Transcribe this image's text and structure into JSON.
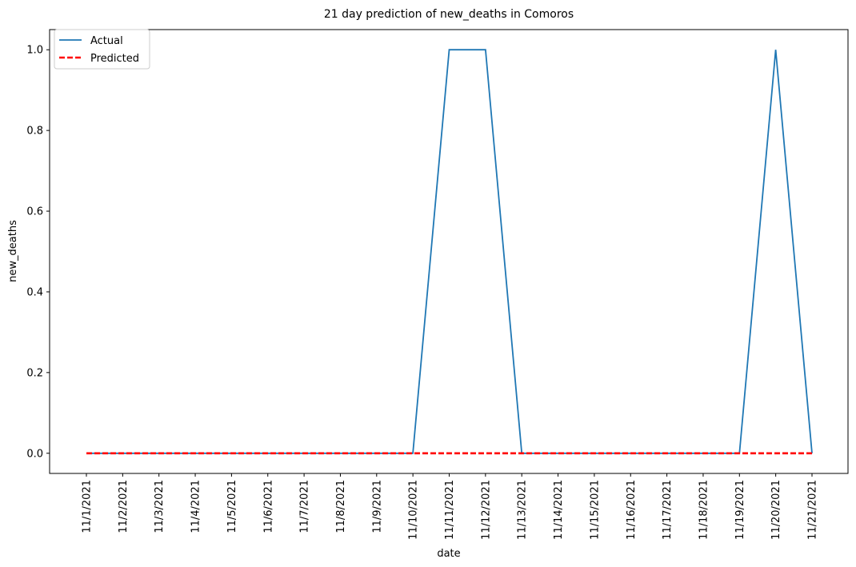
{
  "chart_data": {
    "type": "line",
    "title": "21 day prediction of new_deaths in Comoros",
    "xlabel": "date",
    "ylabel": "new_deaths",
    "x": [
      "11/1/2021",
      "11/2/2021",
      "11/3/2021",
      "11/4/2021",
      "11/5/2021",
      "11/6/2021",
      "11/7/2021",
      "11/8/2021",
      "11/9/2021",
      "11/10/2021",
      "11/11/2021",
      "11/12/2021",
      "11/13/2021",
      "11/14/2021",
      "11/15/2021",
      "11/16/2021",
      "11/17/2021",
      "11/18/2021",
      "11/19/2021",
      "11/20/2021",
      "11/21/2021"
    ],
    "series": [
      {
        "name": "Actual",
        "color": "#1f77b4",
        "style": "solid",
        "values": [
          0,
          0,
          0,
          0,
          0,
          0,
          0,
          0,
          0,
          0,
          1,
          1,
          0,
          0,
          0,
          0,
          0,
          0,
          0,
          1,
          0
        ]
      },
      {
        "name": "Predicted",
        "color": "#ff0000",
        "style": "dashed",
        "values": [
          0,
          0,
          0,
          0,
          0,
          0,
          0,
          0,
          0,
          0,
          0,
          0,
          0,
          0,
          0,
          0,
          0,
          0,
          0,
          0,
          0
        ]
      }
    ],
    "ylim": [
      -0.05,
      1.05
    ],
    "yticks": [
      0.0,
      0.2,
      0.4,
      0.6,
      0.8,
      1.0
    ],
    "ytick_labels": [
      "0.0",
      "0.2",
      "0.4",
      "0.6",
      "0.8",
      "1.0"
    ],
    "grid": false,
    "legend_position": "top-left"
  }
}
